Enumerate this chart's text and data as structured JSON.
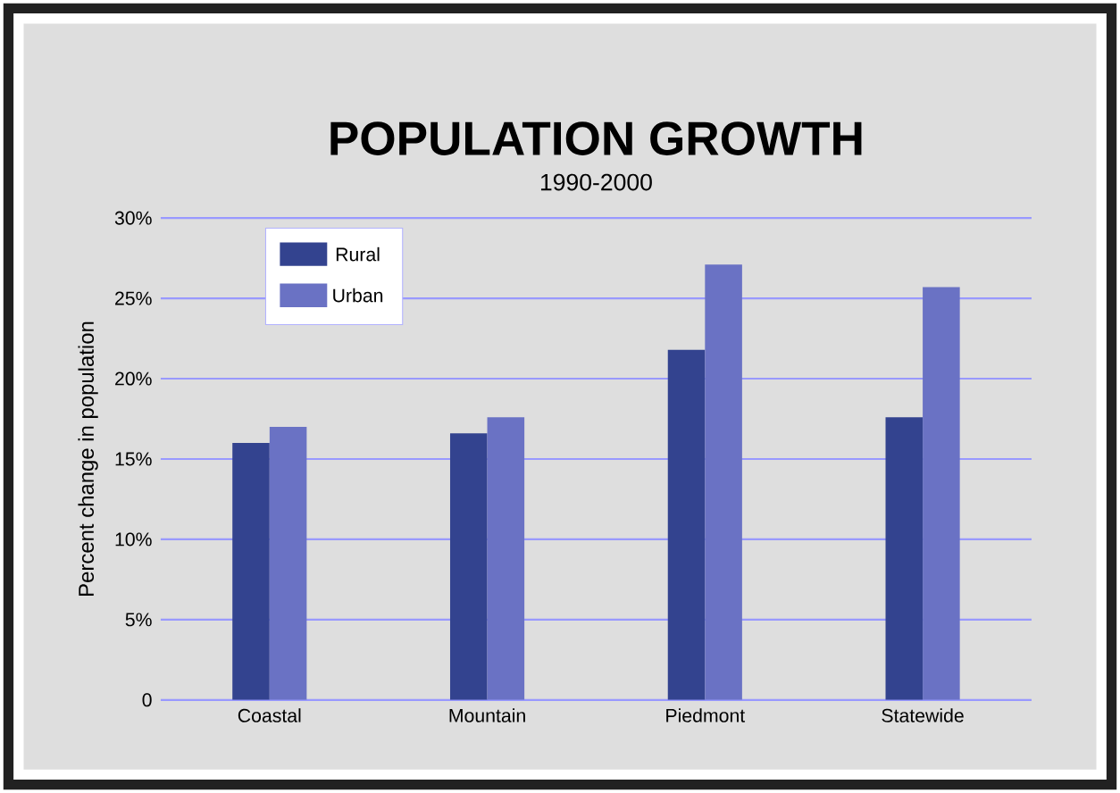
{
  "chart_data": {
    "type": "bar",
    "title": "POPULATION GROWTH",
    "subtitle": "1990-2000",
    "ylabel": "Percent change in population",
    "categories": [
      "Coastal",
      "Mountain",
      "Piedmont",
      "Statewide"
    ],
    "series": [
      {
        "name": "Rural",
        "color": "#33438f",
        "values": [
          16.0,
          16.6,
          21.8,
          17.6
        ]
      },
      {
        "name": "Urban",
        "color": "#6a72c4",
        "values": [
          17.0,
          17.6,
          27.1,
          25.7
        ]
      }
    ],
    "ylim": [
      0,
      30
    ],
    "yticks": [
      {
        "value": 0,
        "label": "0"
      },
      {
        "value": 5,
        "label": "5%"
      },
      {
        "value": 10,
        "label": "10%"
      },
      {
        "value": 15,
        "label": "15%"
      },
      {
        "value": 20,
        "label": "20%"
      },
      {
        "value": 25,
        "label": "25%"
      },
      {
        "value": 30,
        "label": "30%"
      }
    ],
    "grid": "y",
    "legend": "top left"
  }
}
